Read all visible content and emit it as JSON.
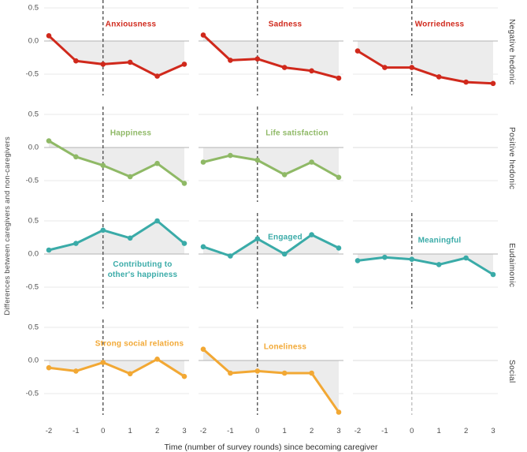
{
  "chart_data": {
    "type": "line",
    "x": [
      -2,
      -1,
      0,
      1,
      2,
      3
    ],
    "xlabel": "Time (number of survey rounds) since becoming caregiver",
    "ylabel": "Differences between caregivers and non-caregivers",
    "yticks": [
      "0.5",
      "0.0",
      "-0.5"
    ],
    "ytick_values": [
      0.5,
      0,
      -0.5
    ],
    "ylim": [
      -0.95,
      0.62
    ],
    "vline_x": 0,
    "grid": true,
    "legend_position": "none",
    "colors": {
      "area_fill": "#ececec",
      "grid_light": "#e9e9e9",
      "zero_line": "#b3b3b3",
      "zero_line_empty": "#dedede",
      "vline": "#474747",
      "vline_empty": "#bdbdbd",
      "tick_text": "#4d4d4d",
      "negative_hedonic": "#d0291c",
      "positive_hedonic": "#8fb966",
      "eudaimonic": "#3aaba8",
      "social": "#f2a834"
    },
    "rows": [
      {
        "label": "Negative hedonic",
        "color": "#d0291c",
        "panels": [
          {
            "title": "Anxiousness",
            "values": [
              0.08,
              -0.3,
              -0.35,
              -0.32,
              -0.53,
              -0.35
            ],
            "title_x": 0.6,
            "title_y": 0.25
          },
          {
            "title": "Sadness",
            "values": [
              0.09,
              -0.29,
              -0.27,
              -0.4,
              -0.45,
              -0.56
            ],
            "title_x": 0.6,
            "title_y": 0.25
          },
          {
            "title": "Worriedness",
            "values": [
              -0.15,
              -0.4,
              -0.4,
              -0.54,
              -0.62,
              -0.64
            ],
            "title_x": 0.6,
            "title_y": 0.25
          }
        ]
      },
      {
        "label": "Positive hedonic",
        "color": "#8fb966",
        "panels": [
          {
            "title": "Happiness",
            "values": [
              0.1,
              -0.14,
              -0.27,
              -0.44,
              -0.24,
              -0.54
            ],
            "title_x": 0.6,
            "title_y": 0.22
          },
          {
            "title": "Life satisfaction",
            "values": [
              -0.22,
              -0.12,
              -0.19,
              -0.41,
              -0.22,
              -0.45
            ],
            "title_x": 0.68,
            "title_y": 0.22
          },
          {
            "empty": true
          }
        ]
      },
      {
        "label": "Eudaimonic",
        "color": "#3aaba8",
        "panels": [
          {
            "title": "Contributing to other's happiness",
            "title_lines": [
              "Contributing to",
              "other's happiness"
            ],
            "values": [
              0.06,
              0.16,
              0.36,
              0.24,
              0.5,
              0.16
            ],
            "title_x": 0.68,
            "title_y": -0.24
          },
          {
            "title": "Engaged",
            "values": [
              0.11,
              -0.03,
              0.23,
              0.0,
              0.29,
              0.09
            ],
            "title_x": 0.6,
            "title_y": 0.25
          },
          {
            "title": "Meaningful",
            "values": [
              -0.1,
              -0.05,
              -0.08,
              -0.16,
              -0.06,
              -0.31
            ],
            "title_x": 0.6,
            "title_y": 0.2
          }
        ]
      },
      {
        "label": "Social",
        "color": "#f2a834",
        "panels": [
          {
            "title": "Strong social relations",
            "values": [
              -0.11,
              -0.16,
              -0.03,
              -0.2,
              0.02,
              -0.24
            ],
            "title_x": 0.66,
            "title_y": 0.25
          },
          {
            "title": "Loneliness",
            "values": [
              0.17,
              -0.19,
              -0.16,
              -0.19,
              -0.19,
              -0.78
            ],
            "title_x": 0.6,
            "title_y": 0.2
          },
          {
            "empty": true
          }
        ]
      }
    ]
  }
}
